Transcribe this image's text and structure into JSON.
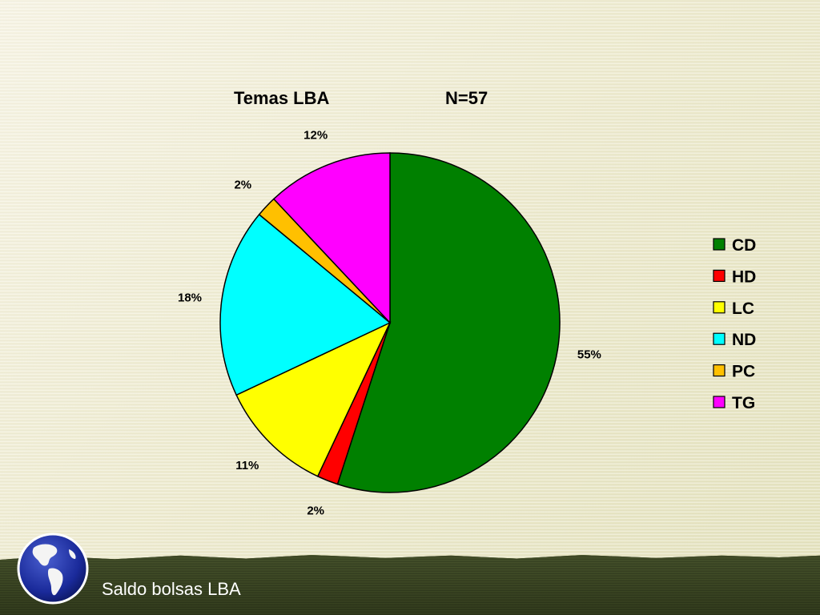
{
  "slide": {
    "footer_text": "Saldo bolsas LBA",
    "logo_icon": "globe-americas-icon"
  },
  "chart_data": {
    "type": "pie",
    "title": "Temas LBA",
    "subtitle": "N=57",
    "start_angle_deg": 0,
    "direction": "clockwise",
    "legend_position": "right",
    "slices": [
      {
        "name": "CD",
        "value": 55,
        "label": "55%",
        "color": "#008000"
      },
      {
        "name": "HD",
        "value": 2,
        "label": "2%",
        "color": "#ff0000"
      },
      {
        "name": "LC",
        "value": 11,
        "label": "11%",
        "color": "#ffff00"
      },
      {
        "name": "ND",
        "value": 18,
        "label": "18%",
        "color": "#00ffff"
      },
      {
        "name": "PC",
        "value": 2,
        "label": "2%",
        "color": "#ffc000"
      },
      {
        "name": "TG",
        "value": 12,
        "label": "12%",
        "color": "#ff00ff"
      }
    ]
  }
}
